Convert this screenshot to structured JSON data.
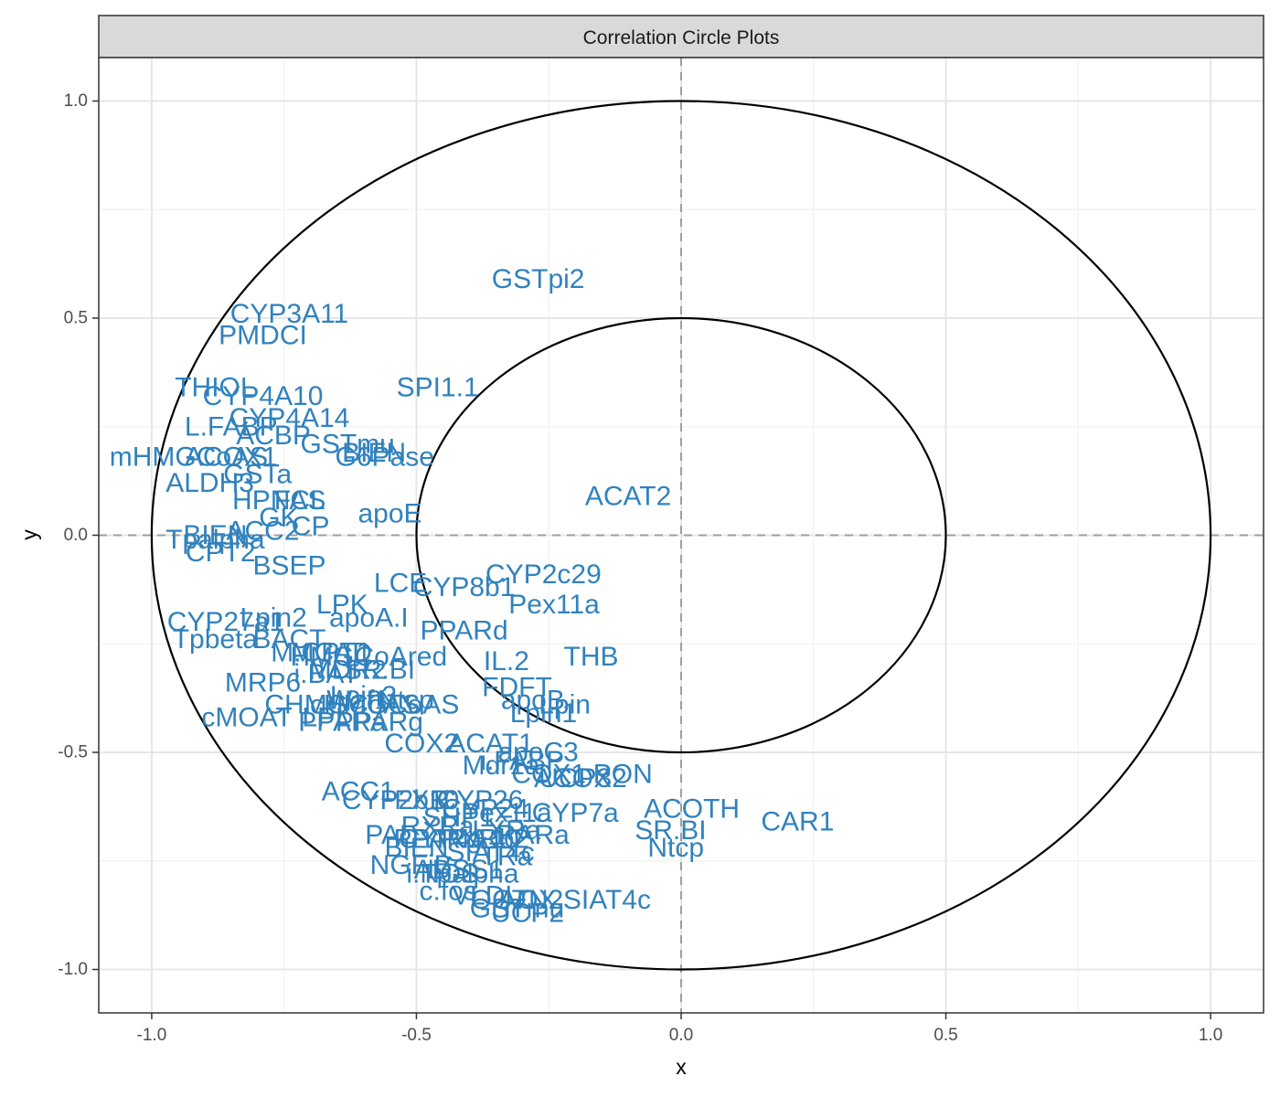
{
  "chart_data": {
    "type": "scatter",
    "title": "Correlation Circle Plots",
    "xlabel": "x",
    "ylabel": "y",
    "xlim": [
      -1.1,
      1.1
    ],
    "ylim": [
      -1.1,
      1.1
    ],
    "x_ticks": [
      -1.0,
      -0.5,
      0.0,
      0.5,
      1.0
    ],
    "y_ticks": [
      -1.0,
      -0.5,
      0.0,
      0.5,
      1.0
    ],
    "x_tick_labels": [
      "-1.0",
      "-0.5",
      "0.0",
      "0.5",
      "1.0"
    ],
    "y_tick_labels": [
      "-1.0",
      "-0.5",
      "0.0",
      "0.5",
      "1.0"
    ],
    "circles": [
      {
        "radius": 1.0
      },
      {
        "radius": 0.5
      }
    ],
    "reference_lines": {
      "x": 0,
      "y": 0,
      "style": "dashed"
    },
    "grid": true,
    "legend": "none",
    "label_color": "#3182BD",
    "points": [
      {
        "label": "GSTpi2",
        "x": -0.27,
        "y": 0.59
      },
      {
        "label": "CYP3A11",
        "x": -0.74,
        "y": 0.51
      },
      {
        "label": "PMDCI",
        "x": -0.79,
        "y": 0.46
      },
      {
        "label": "THIOL",
        "x": -0.88,
        "y": 0.34
      },
      {
        "label": "SPI1.1",
        "x": -0.46,
        "y": 0.34
      },
      {
        "label": "CYP4A10",
        "x": -0.79,
        "y": 0.32
      },
      {
        "label": "CYP4A14",
        "x": -0.74,
        "y": 0.27
      },
      {
        "label": "L.FABP",
        "x": -0.85,
        "y": 0.25
      },
      {
        "label": "ACBP",
        "x": -0.77,
        "y": 0.23
      },
      {
        "label": "GSTmu",
        "x": -0.63,
        "y": 0.21
      },
      {
        "label": "BIEN",
        "x": -0.58,
        "y": 0.19
      },
      {
        "label": "mHMGCoAS",
        "x": -0.93,
        "y": 0.18
      },
      {
        "label": "ACOX1",
        "x": -0.85,
        "y": 0.18
      },
      {
        "label": "G6Pase",
        "x": -0.56,
        "y": 0.18
      },
      {
        "label": "GSTa",
        "x": -0.8,
        "y": 0.14
      },
      {
        "label": "ALDH3",
        "x": -0.89,
        "y": 0.12
      },
      {
        "label": "ACAT2",
        "x": -0.1,
        "y": 0.09
      },
      {
        "label": "HPNCL",
        "x": -0.76,
        "y": 0.08
      },
      {
        "label": "FAS",
        "x": -0.72,
        "y": 0.08
      },
      {
        "label": "apoE",
        "x": -0.55,
        "y": 0.05
      },
      {
        "label": "GK",
        "x": -0.76,
        "y": 0.04
      },
      {
        "label": "BIEN",
        "x": -0.88,
        "y": 0.0
      },
      {
        "label": "ACC2",
        "x": -0.79,
        "y": 0.01
      },
      {
        "label": "CP",
        "x": -0.7,
        "y": 0.02
      },
      {
        "label": "Tpalpha",
        "x": -0.88,
        "y": -0.01
      },
      {
        "label": "CPT2",
        "x": -0.87,
        "y": -0.04
      },
      {
        "label": "BSEP",
        "x": -0.74,
        "y": -0.07
      },
      {
        "label": "CYP2c29",
        "x": -0.26,
        "y": -0.09
      },
      {
        "label": "LCE",
        "x": -0.53,
        "y": -0.11
      },
      {
        "label": "CYP8b1",
        "x": -0.41,
        "y": -0.12
      },
      {
        "label": "Pex11a",
        "x": -0.24,
        "y": -0.16
      },
      {
        "label": "LPK",
        "x": -0.64,
        "y": -0.16
      },
      {
        "label": "CYP27a1",
        "x": -0.86,
        "y": -0.2
      },
      {
        "label": "Lpin2",
        "x": -0.77,
        "y": -0.19
      },
      {
        "label": "apoA.I",
        "x": -0.59,
        "y": -0.19
      },
      {
        "label": "PPARd",
        "x": -0.41,
        "y": -0.22
      },
      {
        "label": "Tpbeta",
        "x": -0.88,
        "y": -0.24
      },
      {
        "label": "BACT",
        "x": -0.74,
        "y": -0.24
      },
      {
        "label": "MCAD",
        "x": -0.66,
        "y": -0.27
      },
      {
        "label": "M.CPT1",
        "x": -0.68,
        "y": -0.27
      },
      {
        "label": "HMGCoAred",
        "x": -0.59,
        "y": -0.28
      },
      {
        "label": "IL.2",
        "x": -0.33,
        "y": -0.29
      },
      {
        "label": "THB",
        "x": -0.17,
        "y": -0.28
      },
      {
        "label": "MDR2",
        "x": -0.63,
        "y": -0.31
      },
      {
        "label": "i.BAT",
        "x": -0.67,
        "y": -0.32
      },
      {
        "label": "SR.BI",
        "x": -0.57,
        "y": -0.31
      },
      {
        "label": "MRP6",
        "x": -0.79,
        "y": -0.34
      },
      {
        "label": "FDFT",
        "x": -0.31,
        "y": -0.35
      },
      {
        "label": "Lpin3",
        "x": -0.6,
        "y": -0.37
      },
      {
        "label": "CHMGCoAS",
        "x": -0.64,
        "y": -0.39
      },
      {
        "label": "Waf1",
        "x": -0.61,
        "y": -0.38
      },
      {
        "label": "cHMGCoAS",
        "x": -0.56,
        "y": -0.39
      },
      {
        "label": "Ntcp",
        "x": -0.52,
        "y": -0.38
      },
      {
        "label": "Lpin",
        "x": -0.22,
        "y": -0.39
      },
      {
        "label": "apoB",
        "x": -0.28,
        "y": -0.38
      },
      {
        "label": "Lpin1",
        "x": -0.26,
        "y": -0.41
      },
      {
        "label": "cMOAT",
        "x": -0.82,
        "y": -0.42
      },
      {
        "label": "LPL",
        "x": -0.67,
        "y": -0.42
      },
      {
        "label": "PPARa",
        "x": -0.64,
        "y": -0.43
      },
      {
        "label": "PPARg",
        "x": -0.57,
        "y": -0.43
      },
      {
        "label": "COX2",
        "x": -0.49,
        "y": -0.48
      },
      {
        "label": "ACAT1",
        "x": -0.36,
        "y": -0.48
      },
      {
        "label": "apoC3",
        "x": -0.27,
        "y": -0.5
      },
      {
        "label": "Mdr1a",
        "x": -0.34,
        "y": -0.53
      },
      {
        "label": "i.FABP",
        "x": -0.3,
        "y": -0.52
      },
      {
        "label": "COX1",
        "x": -0.25,
        "y": -0.55
      },
      {
        "label": "UCP3",
        "x": -0.2,
        "y": -0.56
      },
      {
        "label": "ACOX2",
        "x": -0.19,
        "y": -0.56
      },
      {
        "label": "ACC1",
        "x": -0.61,
        "y": -0.59
      },
      {
        "label": "CYP2b10",
        "x": -0.53,
        "y": -0.61
      },
      {
        "label": "FXR",
        "x": -0.49,
        "y": -0.61
      },
      {
        "label": "PON",
        "x": -0.11,
        "y": -0.55
      },
      {
        "label": "CYP26",
        "x": -0.38,
        "y": -0.61
      },
      {
        "label": "CYP24",
        "x": -0.37,
        "y": -0.63
      },
      {
        "label": "Pex11a",
        "x": -0.33,
        "y": -0.64
      },
      {
        "label": "ACOTH",
        "x": 0.02,
        "y": -0.63
      },
      {
        "label": "CYP7a",
        "x": -0.2,
        "y": -0.64
      },
      {
        "label": "SHP1",
        "x": -0.42,
        "y": -0.65
      },
      {
        "label": "RXRa",
        "x": -0.46,
        "y": -0.67
      },
      {
        "label": "CAR1",
        "x": 0.22,
        "y": -0.66
      },
      {
        "label": "SR.BI",
        "x": -0.02,
        "y": -0.68
      },
      {
        "label": "LXRa",
        "x": -0.33,
        "y": -0.68
      },
      {
        "label": "PAL",
        "x": -0.55,
        "y": -0.69
      },
      {
        "label": "PPARg",
        "x": -0.46,
        "y": -0.7
      },
      {
        "label": "RXRb2",
        "x": -0.37,
        "y": -0.7
      },
      {
        "label": "RARa",
        "x": -0.28,
        "y": -0.69
      },
      {
        "label": "CYP4A10",
        "x": -0.42,
        "y": -0.7
      },
      {
        "label": "Ntcp",
        "x": -0.01,
        "y": -0.72
      },
      {
        "label": "BIEN",
        "x": -0.5,
        "y": -0.72
      },
      {
        "label": "SIAT4c",
        "x": -0.36,
        "y": -0.73
      },
      {
        "label": "TRa",
        "x": -0.33,
        "y": -0.74
      },
      {
        "label": "NGFiB",
        "x": -0.51,
        "y": -0.76
      },
      {
        "label": "ADSS1",
        "x": -0.42,
        "y": -0.77
      },
      {
        "label": "i.NOS",
        "x": -0.45,
        "y": -0.78
      },
      {
        "label": "Tpalpha",
        "x": -0.4,
        "y": -0.78
      },
      {
        "label": "c.fos",
        "x": -0.44,
        "y": -0.82
      },
      {
        "label": "VLDLr",
        "x": -0.36,
        "y": -0.83
      },
      {
        "label": "OCTN2",
        "x": -0.31,
        "y": -0.84
      },
      {
        "label": "SIAT4c",
        "x": -0.14,
        "y": -0.84
      },
      {
        "label": "AOX",
        "x": -0.29,
        "y": -0.84
      },
      {
        "label": "UCP2",
        "x": -0.29,
        "y": -0.87
      },
      {
        "label": "GSTmu",
        "x": -0.31,
        "y": -0.86
      }
    ]
  }
}
